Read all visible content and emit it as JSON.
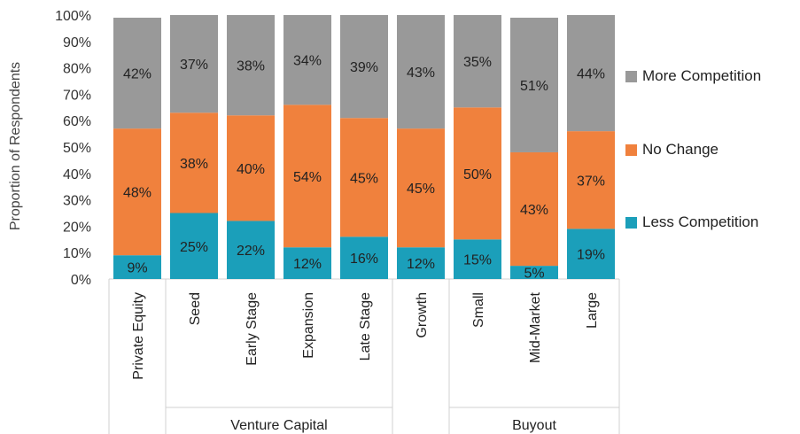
{
  "chart_data": {
    "type": "bar",
    "stacked": true,
    "ylabel": "Proportion of Respondents",
    "ylim": [
      0,
      100
    ],
    "yticks": [
      "0%",
      "10%",
      "20%",
      "30%",
      "40%",
      "50%",
      "60%",
      "70%",
      "80%",
      "90%",
      "100%"
    ],
    "categories": [
      "Private Equity",
      "Seed",
      "Early Stage",
      "Expansion",
      "Late Stage",
      "Growth",
      "Small",
      "Mid-Market",
      "Large"
    ],
    "groups": [
      {
        "label": "",
        "members": [
          "Private Equity"
        ]
      },
      {
        "label": "Venture Capital",
        "members": [
          "Seed",
          "Early Stage",
          "Expansion",
          "Late Stage"
        ]
      },
      {
        "label": "",
        "members": [
          "Growth"
        ]
      },
      {
        "label": "Buyout",
        "members": [
          "Small",
          "Mid-Market",
          "Large"
        ]
      }
    ],
    "series": [
      {
        "name": "Less Competition",
        "color": "#1b9fba",
        "values": [
          9,
          25,
          22,
          12,
          16,
          12,
          15,
          5,
          19
        ],
        "labels": [
          "9%",
          "25%",
          "22%",
          "12%",
          "16%",
          "12%",
          "15%",
          "5%",
          "19%"
        ]
      },
      {
        "name": "No Change",
        "color": "#f0813d",
        "values": [
          48,
          38,
          40,
          54,
          45,
          45,
          50,
          43,
          37
        ],
        "labels": [
          "48%",
          "38%",
          "40%",
          "54%",
          "45%",
          "45%",
          "50%",
          "43%",
          "37%"
        ]
      },
      {
        "name": "More Competition",
        "color": "#999999",
        "values": [
          42,
          37,
          38,
          34,
          39,
          43,
          35,
          51,
          44
        ],
        "labels": [
          "42%",
          "37%",
          "38%",
          "34%",
          "39%",
          "43%",
          "35%",
          "51%",
          "44%"
        ]
      }
    ],
    "legend": {
      "position": "right",
      "order": [
        "More Competition",
        "No Change",
        "Less Competition"
      ]
    },
    "grid": false
  }
}
